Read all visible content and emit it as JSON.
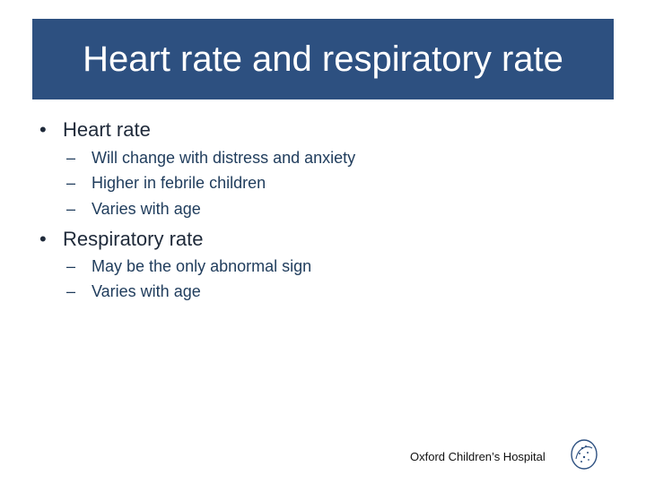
{
  "slide": {
    "title": "Heart rate and respiratory rate",
    "title_bar_color": "#2d5080"
  },
  "bullets": [
    {
      "marker": "•",
      "text": "Heart rate",
      "subs": [
        {
          "marker": "–",
          "text": "Will change with distress and anxiety"
        },
        {
          "marker": "–",
          "text": "Higher in febrile children"
        },
        {
          "marker": "–",
          "text": "Varies with age"
        }
      ]
    },
    {
      "marker": "•",
      "text": "Respiratory rate",
      "subs": [
        {
          "marker": "–",
          "text": "May be the only abnormal sign"
        },
        {
          "marker": "–",
          "text": "Varies with age"
        }
      ]
    }
  ],
  "footer": {
    "text": "Oxford Children’s Hospital",
    "logo_icon": "hospital-logo-icon"
  }
}
